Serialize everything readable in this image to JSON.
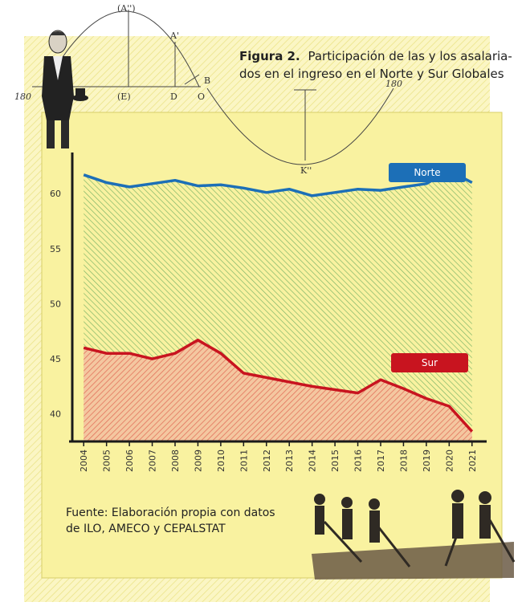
{
  "figure": {
    "label": "Figura 2.",
    "title_line1": "Participación de las y los asalaria-",
    "title_line2": "dos en el ingreso en el Norte y Sur Globales"
  },
  "source": {
    "line1": "Fuente: Elaboración propia con datos",
    "line2": "de ILO, AMECO y CEPALSTAT"
  },
  "decor": {
    "arc_top": "(A'')",
    "arc_a": "A'",
    "arc_e": "(E)",
    "arc_d": "D",
    "arc_o": "O",
    "arc_b": "B",
    "arc_bottom": "K''",
    "arc_180_left": "180",
    "arc_180_right": "180"
  },
  "colors": {
    "paper": "#f8f3a6",
    "paper_outer": "#fbf6c4",
    "norte": "#1c6fb7",
    "norte_fill": "#8fbf72",
    "sur": "#c8141f",
    "sur_fill": "#e9876b"
  },
  "chart_data": {
    "type": "area",
    "x": [
      "2004",
      "2005",
      "2006",
      "2007",
      "2008",
      "2009",
      "2010",
      "2011",
      "2012",
      "2013",
      "2014",
      "2015",
      "2016",
      "2017",
      "2018",
      "2019",
      "2020",
      "2021"
    ],
    "ylim": [
      37.5,
      63
    ],
    "yticks": [
      40,
      45,
      50,
      55,
      60
    ],
    "series": [
      {
        "name": "Norte",
        "values": [
          61.7,
          61.0,
          60.6,
          60.9,
          61.2,
          60.7,
          60.8,
          60.5,
          60.1,
          60.4,
          59.8,
          60.1,
          60.4,
          60.3,
          60.6,
          60.9,
          62.1,
          61.0
        ]
      },
      {
        "name": "Sur",
        "values": [
          46.0,
          45.5,
          45.5,
          45.0,
          45.5,
          46.7,
          45.5,
          43.7,
          43.3,
          42.9,
          42.5,
          42.2,
          41.9,
          43.1,
          42.3,
          41.4,
          40.7,
          38.4
        ]
      }
    ]
  }
}
